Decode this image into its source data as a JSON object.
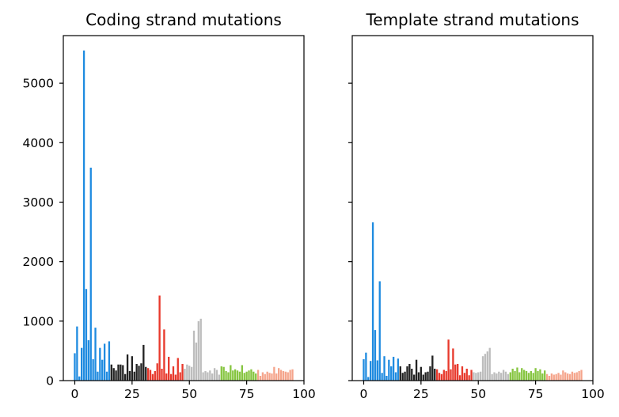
{
  "chart_data": [
    {
      "type": "bar",
      "title": "Coding strand mutations",
      "xlabel": "",
      "ylabel": "",
      "xlim": [
        -5,
        100
      ],
      "ylim": [
        0,
        5800
      ],
      "xticks": [
        0,
        25,
        50,
        75,
        100
      ],
      "yticks": [
        0,
        1000,
        2000,
        3000,
        4000,
        5000
      ],
      "show_yticklabels": true,
      "grid": false,
      "x": [
        0,
        1,
        2,
        3,
        4,
        5,
        6,
        7,
        8,
        9,
        10,
        11,
        12,
        13,
        14,
        15,
        16,
        17,
        18,
        19,
        20,
        21,
        22,
        23,
        24,
        25,
        26,
        27,
        28,
        29,
        30,
        31,
        32,
        33,
        34,
        35,
        36,
        37,
        38,
        39,
        40,
        41,
        42,
        43,
        44,
        45,
        46,
        47,
        48,
        49,
        50,
        51,
        52,
        53,
        54,
        55,
        56,
        57,
        58,
        59,
        60,
        61,
        62,
        63,
        64,
        65,
        66,
        67,
        68,
        69,
        70,
        71,
        72,
        73,
        74,
        75,
        76,
        77,
        78,
        79,
        80,
        81,
        82,
        83,
        84,
        85,
        86,
        87,
        88,
        89,
        90,
        91,
        92,
        93,
        94,
        95
      ],
      "values": [
        460,
        910,
        70,
        550,
        5550,
        1540,
        680,
        3580,
        360,
        890,
        150,
        550,
        350,
        620,
        150,
        660,
        270,
        210,
        170,
        270,
        270,
        260,
        110,
        440,
        160,
        410,
        150,
        280,
        250,
        290,
        600,
        230,
        210,
        180,
        110,
        160,
        290,
        1430,
        200,
        860,
        120,
        400,
        110,
        240,
        100,
        380,
        140,
        280,
        200,
        270,
        250,
        230,
        840,
        640,
        1000,
        1040,
        140,
        160,
        140,
        170,
        120,
        210,
        180,
        100,
        240,
        230,
        160,
        140,
        260,
        170,
        190,
        170,
        150,
        260,
        130,
        150,
        170,
        190,
        150,
        120,
        180,
        80,
        140,
        110,
        150,
        130,
        120,
        230,
        120,
        210,
        180,
        160,
        150,
        140,
        180,
        190
      ],
      "colors": [
        "#1f8be0",
        "#222222",
        "#e8392c",
        "#bdbdbd",
        "#86c540",
        "#f5a58c"
      ],
      "group_size": 16
    },
    {
      "type": "bar",
      "title": "Template strand mutations",
      "xlabel": "",
      "ylabel": "",
      "xlim": [
        -5,
        100
      ],
      "ylim": [
        0,
        5800
      ],
      "xticks": [
        0,
        25,
        50,
        75,
        100
      ],
      "yticks": [
        0,
        1000,
        2000,
        3000,
        4000,
        5000
      ],
      "show_yticklabels": false,
      "grid": false,
      "x": [
        0,
        1,
        2,
        3,
        4,
        5,
        6,
        7,
        8,
        9,
        10,
        11,
        12,
        13,
        14,
        15,
        16,
        17,
        18,
        19,
        20,
        21,
        22,
        23,
        24,
        25,
        26,
        27,
        28,
        29,
        30,
        31,
        32,
        33,
        34,
        35,
        36,
        37,
        38,
        39,
        40,
        41,
        42,
        43,
        44,
        45,
        46,
        47,
        48,
        49,
        50,
        51,
        52,
        53,
        54,
        55,
        56,
        57,
        58,
        59,
        60,
        61,
        62,
        63,
        64,
        65,
        66,
        67,
        68,
        69,
        70,
        71,
        72,
        73,
        74,
        75,
        76,
        77,
        78,
        79,
        80,
        81,
        82,
        83,
        84,
        85,
        86,
        87,
        88,
        89,
        90,
        91,
        92,
        93,
        94,
        95
      ],
      "values": [
        360,
        470,
        60,
        330,
        2660,
        850,
        340,
        1670,
        130,
        410,
        80,
        350,
        240,
        400,
        140,
        370,
        240,
        130,
        150,
        240,
        280,
        200,
        100,
        350,
        140,
        230,
        100,
        140,
        150,
        240,
        420,
        200,
        190,
        130,
        110,
        180,
        160,
        690,
        190,
        540,
        270,
        280,
        90,
        240,
        130,
        200,
        90,
        180,
        140,
        130,
        140,
        150,
        410,
        450,
        490,
        550,
        110,
        140,
        120,
        150,
        130,
        180,
        150,
        110,
        140,
        200,
        160,
        220,
        140,
        210,
        180,
        160,
        130,
        160,
        130,
        210,
        160,
        190,
        120,
        170,
        110,
        80,
        120,
        100,
        110,
        130,
        100,
        170,
        140,
        120,
        110,
        150,
        130,
        140,
        160,
        180
      ],
      "colors": [
        "#1f8be0",
        "#222222",
        "#e8392c",
        "#bdbdbd",
        "#86c540",
        "#f5a58c"
      ],
      "group_size": 16
    }
  ]
}
